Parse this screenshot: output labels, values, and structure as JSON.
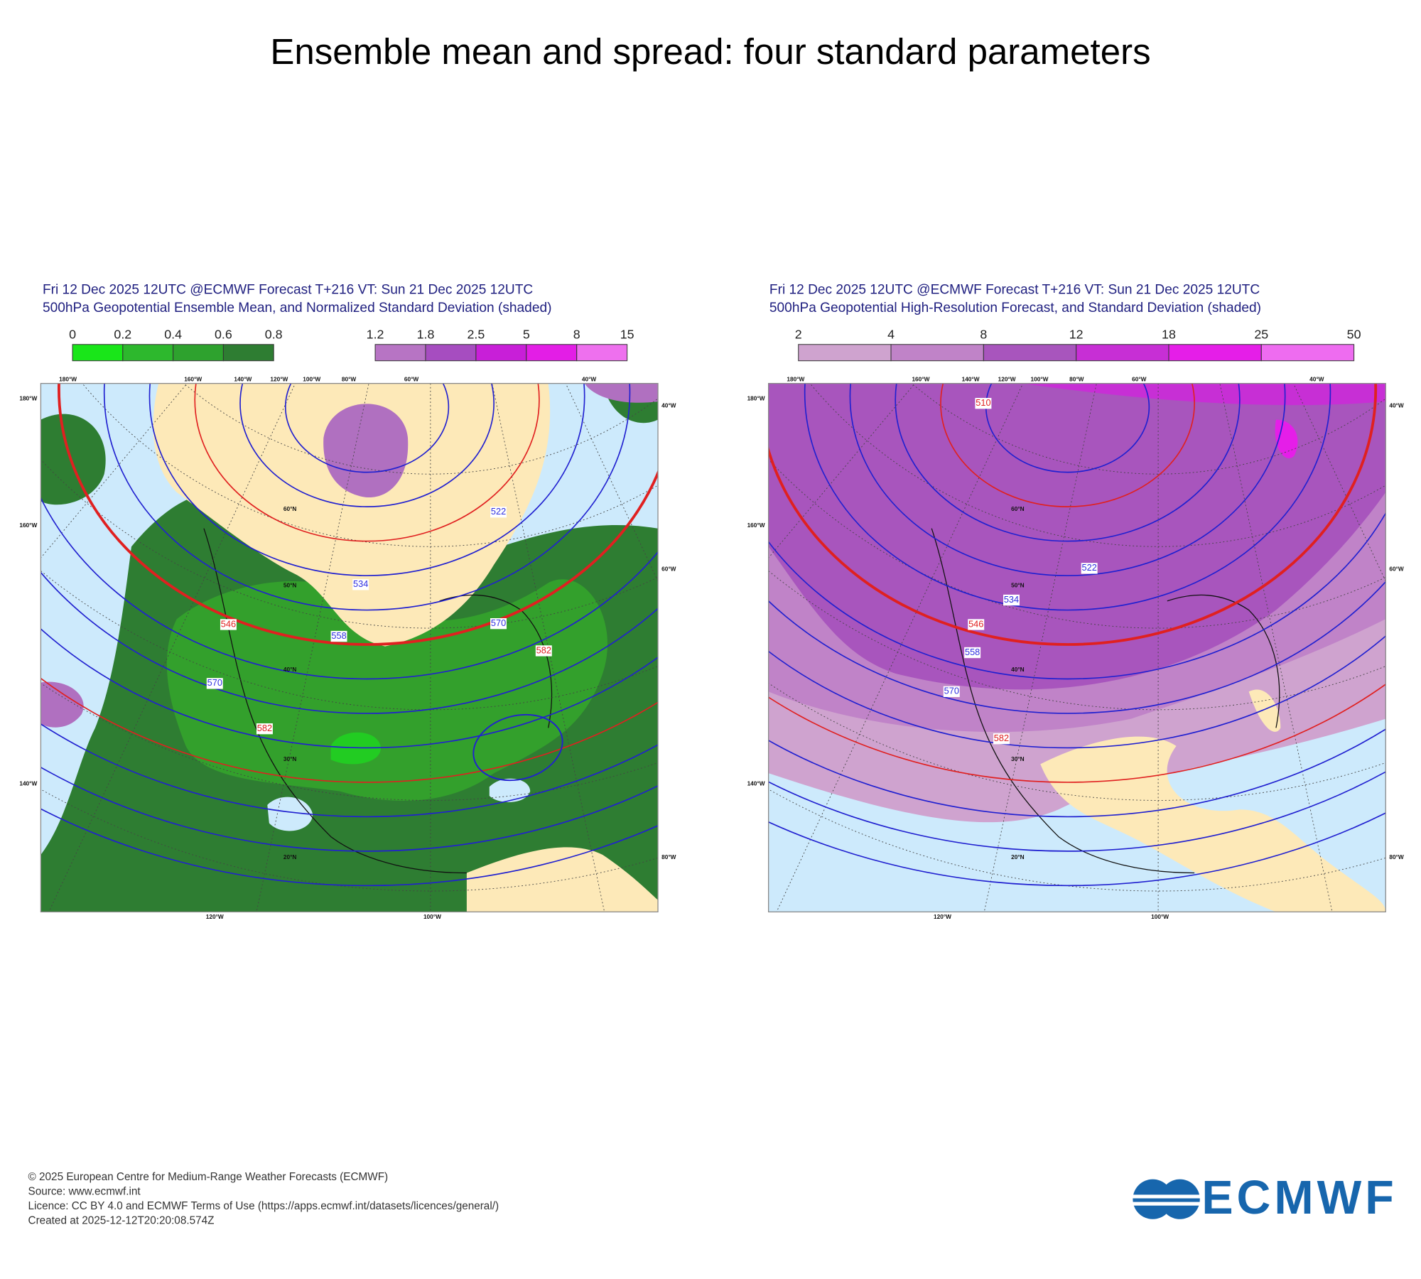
{
  "title": "Ensemble mean and spread: four standard parameters",
  "panels": [
    {
      "header": [
        "Fri 12 Dec 2025 12UTC @ECMWF Forecast T+216 VT: Sun 21 Dec 2025 12UTC",
        "500hPa Geopotential Ensemble Mean, and Normalized Standard Deviation (shaded)"
      ],
      "colorbars": [
        {
          "labels": [
            0,
            0.2,
            0.4,
            0.6,
            0.8
          ],
          "colors": [
            "#19e619",
            "#2db82d",
            "#2ea22e",
            "#2e7d32"
          ]
        },
        {
          "labels": [
            1.2,
            1.8,
            2.5,
            5,
            8,
            15
          ],
          "colors": [
            "#b774c4",
            "#a64dc0",
            "#c81fd8",
            "#e31ee6",
            "#ee70ee"
          ]
        }
      ],
      "lon_top": [
        "180°W",
        "160°W",
        "140°W",
        "120°W",
        "100°W",
        "80°W",
        "60°W",
        "40°W"
      ],
      "lon_left": [
        "180°W",
        "160°W",
        "140°W"
      ],
      "lon_right": [
        "40°W",
        "60°W",
        "80°W"
      ],
      "lon_bottom": [
        "120°W",
        "100°W"
      ],
      "lat": [
        "60°N",
        "50°N",
        "40°N",
        "30°N",
        "20°N"
      ],
      "contour_labels": [
        {
          "text": "546",
          "color": "#e02020"
        },
        {
          "text": "534",
          "color": "#3030e0"
        },
        {
          "text": "522",
          "color": "#3030e0"
        },
        {
          "text": "558",
          "color": "#3030e0"
        },
        {
          "text": "570",
          "color": "#3030e0"
        },
        {
          "text": "582",
          "color": "#e02020"
        },
        {
          "text": "570",
          "color": "#3030e0"
        },
        {
          "text": "582",
          "color": "#e02020"
        }
      ]
    },
    {
      "header": [
        "Fri 12 Dec 2025 12UTC @ECMWF Forecast T+216 VT: Sun 21 Dec 2025 12UTC",
        "500hPa Geopotential High-Resolution Forecast, and Standard Deviation (shaded)"
      ],
      "colorbars": [
        {
          "labels": [
            2,
            4,
            8,
            12,
            18,
            25,
            50
          ],
          "colors": [
            "#cfa3cf",
            "#c083c8",
            "#a855bd",
            "#c72fd5",
            "#e51ee8",
            "#ee6cf0"
          ]
        }
      ],
      "lon_top": [
        "180°W",
        "160°W",
        "140°W",
        "120°W",
        "100°W",
        "80°W",
        "60°W",
        "40°W"
      ],
      "lon_left": [
        "180°W",
        "160°W",
        "140°W"
      ],
      "lon_right": [
        "40°W",
        "60°W",
        "80°W"
      ],
      "lon_bottom": [
        "120°W",
        "100°W"
      ],
      "lat": [
        "60°N",
        "50°N",
        "40°N",
        "30°N",
        "20°N"
      ],
      "contour_labels": [
        {
          "text": "546",
          "color": "#e02020"
        },
        {
          "text": "534",
          "color": "#3030e0"
        },
        {
          "text": "522",
          "color": "#3030e0"
        },
        {
          "text": "558",
          "color": "#3030e0"
        },
        {
          "text": "570",
          "color": "#3030e0"
        },
        {
          "text": "582",
          "color": "#e02020"
        },
        {
          "text": "510",
          "color": "#e02020"
        }
      ]
    }
  ],
  "footer": [
    "© 2025 European Centre for Medium-Range Weather Forecasts (ECMWF)",
    "Source: www.ecmwf.int",
    "Licence: CC BY 4.0 and ECMWF Terms of Use (https://apps.ecmwf.int/datasets/licences/general/)",
    "Created at 2025-12-12T20:20:08.574Z"
  ],
  "logo": "ECMWF"
}
